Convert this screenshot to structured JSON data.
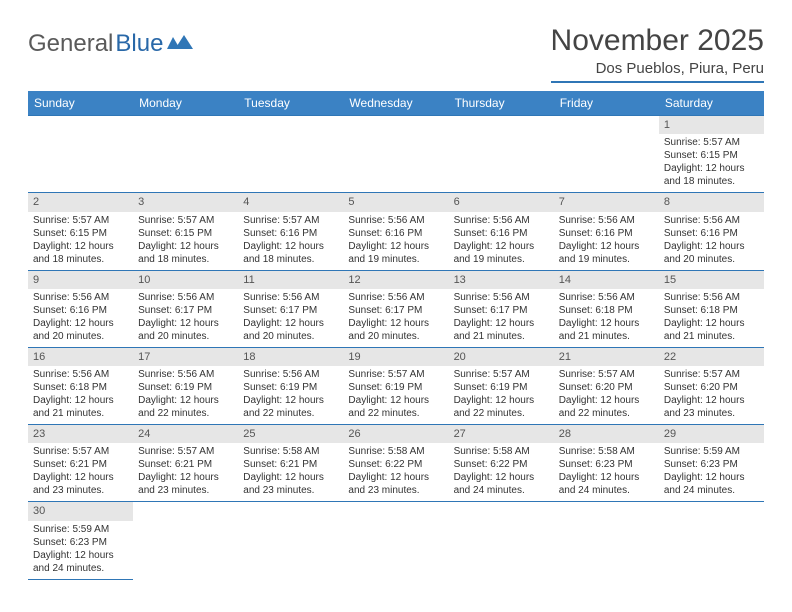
{
  "logo": {
    "word1": "General",
    "word2": "Blue"
  },
  "title": "November 2025",
  "location": "Dos Pueblos, Piura, Peru",
  "weekdays": [
    "Sunday",
    "Monday",
    "Tuesday",
    "Wednesday",
    "Thursday",
    "Friday",
    "Saturday"
  ],
  "colors": {
    "header_bg": "#3b82c4",
    "border": "#2f76b6",
    "daynum_bg": "#e6e6e6",
    "logo_gray": "#5a5a5a",
    "logo_blue": "#2968a8"
  },
  "days": [
    {
      "n": 1,
      "sr": "5:57 AM",
      "ss": "6:15 PM",
      "dl": "12 hours and 18 minutes."
    },
    {
      "n": 2,
      "sr": "5:57 AM",
      "ss": "6:15 PM",
      "dl": "12 hours and 18 minutes."
    },
    {
      "n": 3,
      "sr": "5:57 AM",
      "ss": "6:15 PM",
      "dl": "12 hours and 18 minutes."
    },
    {
      "n": 4,
      "sr": "5:57 AM",
      "ss": "6:16 PM",
      "dl": "12 hours and 18 minutes."
    },
    {
      "n": 5,
      "sr": "5:56 AM",
      "ss": "6:16 PM",
      "dl": "12 hours and 19 minutes."
    },
    {
      "n": 6,
      "sr": "5:56 AM",
      "ss": "6:16 PM",
      "dl": "12 hours and 19 minutes."
    },
    {
      "n": 7,
      "sr": "5:56 AM",
      "ss": "6:16 PM",
      "dl": "12 hours and 19 minutes."
    },
    {
      "n": 8,
      "sr": "5:56 AM",
      "ss": "6:16 PM",
      "dl": "12 hours and 20 minutes."
    },
    {
      "n": 9,
      "sr": "5:56 AM",
      "ss": "6:16 PM",
      "dl": "12 hours and 20 minutes."
    },
    {
      "n": 10,
      "sr": "5:56 AM",
      "ss": "6:17 PM",
      "dl": "12 hours and 20 minutes."
    },
    {
      "n": 11,
      "sr": "5:56 AM",
      "ss": "6:17 PM",
      "dl": "12 hours and 20 minutes."
    },
    {
      "n": 12,
      "sr": "5:56 AM",
      "ss": "6:17 PM",
      "dl": "12 hours and 20 minutes."
    },
    {
      "n": 13,
      "sr": "5:56 AM",
      "ss": "6:17 PM",
      "dl": "12 hours and 21 minutes."
    },
    {
      "n": 14,
      "sr": "5:56 AM",
      "ss": "6:18 PM",
      "dl": "12 hours and 21 minutes."
    },
    {
      "n": 15,
      "sr": "5:56 AM",
      "ss": "6:18 PM",
      "dl": "12 hours and 21 minutes."
    },
    {
      "n": 16,
      "sr": "5:56 AM",
      "ss": "6:18 PM",
      "dl": "12 hours and 21 minutes."
    },
    {
      "n": 17,
      "sr": "5:56 AM",
      "ss": "6:19 PM",
      "dl": "12 hours and 22 minutes."
    },
    {
      "n": 18,
      "sr": "5:56 AM",
      "ss": "6:19 PM",
      "dl": "12 hours and 22 minutes."
    },
    {
      "n": 19,
      "sr": "5:57 AM",
      "ss": "6:19 PM",
      "dl": "12 hours and 22 minutes."
    },
    {
      "n": 20,
      "sr": "5:57 AM",
      "ss": "6:19 PM",
      "dl": "12 hours and 22 minutes."
    },
    {
      "n": 21,
      "sr": "5:57 AM",
      "ss": "6:20 PM",
      "dl": "12 hours and 22 minutes."
    },
    {
      "n": 22,
      "sr": "5:57 AM",
      "ss": "6:20 PM",
      "dl": "12 hours and 23 minutes."
    },
    {
      "n": 23,
      "sr": "5:57 AM",
      "ss": "6:21 PM",
      "dl": "12 hours and 23 minutes."
    },
    {
      "n": 24,
      "sr": "5:57 AM",
      "ss": "6:21 PM",
      "dl": "12 hours and 23 minutes."
    },
    {
      "n": 25,
      "sr": "5:58 AM",
      "ss": "6:21 PM",
      "dl": "12 hours and 23 minutes."
    },
    {
      "n": 26,
      "sr": "5:58 AM",
      "ss": "6:22 PM",
      "dl": "12 hours and 23 minutes."
    },
    {
      "n": 27,
      "sr": "5:58 AM",
      "ss": "6:22 PM",
      "dl": "12 hours and 24 minutes."
    },
    {
      "n": 28,
      "sr": "5:58 AM",
      "ss": "6:23 PM",
      "dl": "12 hours and 24 minutes."
    },
    {
      "n": 29,
      "sr": "5:59 AM",
      "ss": "6:23 PM",
      "dl": "12 hours and 24 minutes."
    },
    {
      "n": 30,
      "sr": "5:59 AM",
      "ss": "6:23 PM",
      "dl": "12 hours and 24 minutes."
    }
  ],
  "labels": {
    "sunrise": "Sunrise: ",
    "sunset": "Sunset: ",
    "daylight": "Daylight: "
  },
  "first_weekday_index": 6
}
